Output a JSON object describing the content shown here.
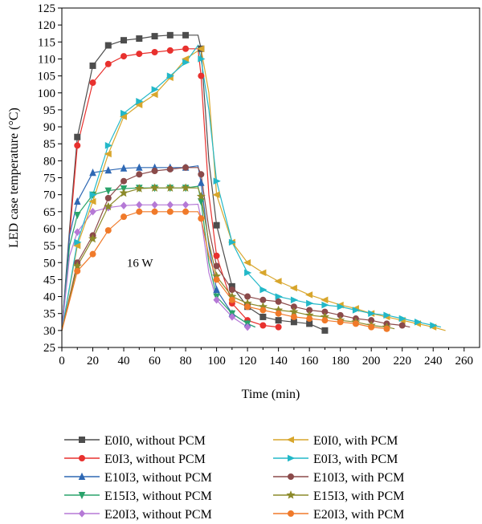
{
  "chart_data": {
    "type": "line",
    "title": "",
    "xlabel": "Time (min)",
    "ylabel": "LED case temperature (°C)",
    "xlim": [
      0,
      270
    ],
    "ylim": [
      25,
      125
    ],
    "xticks": [
      0,
      20,
      40,
      60,
      80,
      100,
      120,
      140,
      160,
      180,
      200,
      220,
      240,
      260
    ],
    "yticks": [
      25,
      30,
      35,
      40,
      45,
      50,
      55,
      60,
      65,
      70,
      75,
      80,
      85,
      90,
      95,
      100,
      105,
      110,
      115,
      120,
      125
    ],
    "grid": false,
    "legend_position": "bottom",
    "annotation": {
      "text": "16 W",
      "x": 42,
      "y": 50
    },
    "series": [
      {
        "name": "E0I0, without PCM",
        "color": "#4d4d4d",
        "marker": "square",
        "x": [
          0,
          5,
          10,
          20,
          30,
          40,
          50,
          60,
          70,
          80,
          88,
          90,
          95,
          100,
          110,
          120,
          130,
          140,
          150,
          160,
          170
        ],
        "y": [
          30,
          60,
          87,
          108,
          114,
          115.5,
          116,
          116.7,
          117,
          117,
          117,
          113,
          80,
          61,
          43,
          37,
          34,
          33,
          32.5,
          32,
          30
        ]
      },
      {
        "name": "E0I3, without PCM",
        "color": "#e8312e",
        "marker": "circle",
        "x": [
          0,
          5,
          10,
          20,
          30,
          40,
          50,
          60,
          70,
          80,
          88,
          90,
          95,
          100,
          110,
          120,
          130,
          140
        ],
        "y": [
          30,
          58,
          84.5,
          103,
          108.5,
          110.8,
          111.5,
          112,
          112.5,
          113,
          113,
          105,
          70,
          52,
          38,
          33,
          31.5,
          31
        ]
      },
      {
        "name": "E10I3, without PCM",
        "color": "#2e68b4",
        "marker": "triangle-up",
        "x": [
          0,
          5,
          10,
          20,
          30,
          40,
          50,
          60,
          70,
          80,
          88,
          90,
          95,
          100,
          110,
          120,
          125
        ],
        "y": [
          30,
          58,
          68,
          76.5,
          77.2,
          77.8,
          78,
          78,
          78,
          78,
          78.5,
          73.5,
          55,
          42,
          35,
          32,
          31
        ]
      },
      {
        "name": "E15I3, without PCM",
        "color": "#2aa36b",
        "marker": "triangle-down",
        "x": [
          0,
          5,
          10,
          20,
          30,
          40,
          50,
          60,
          70,
          80,
          88,
          90,
          95,
          100,
          110,
          120,
          125
        ],
        "y": [
          30,
          55,
          64,
          70,
          71.2,
          71.8,
          72,
          72,
          72,
          72,
          72.5,
          68,
          50,
          40,
          35,
          32,
          31
        ]
      },
      {
        "name": "E20I3, without PCM",
        "color": "#b579d6",
        "marker": "diamond",
        "x": [
          0,
          5,
          10,
          20,
          30,
          40,
          50,
          60,
          70,
          80,
          88,
          90,
          95,
          100,
          110,
          120
        ],
        "y": [
          30,
          52,
          59,
          65,
          66.2,
          66.8,
          67,
          67,
          67,
          67,
          67.2,
          63,
          47,
          39,
          34,
          31
        ]
      },
      {
        "name": "E0I0, with PCM",
        "color": "#d8a62c",
        "marker": "triangle-left",
        "x": [
          0,
          10,
          20,
          30,
          40,
          50,
          60,
          70,
          80,
          90,
          95,
          100,
          110,
          120,
          130,
          140,
          150,
          160,
          170,
          180,
          190,
          200,
          210,
          220,
          230,
          240,
          248
        ],
        "y": [
          30,
          55,
          68,
          82,
          93,
          96.5,
          99.5,
          104.5,
          110,
          113,
          100,
          70,
          56,
          50,
          47,
          44.5,
          42.5,
          40.5,
          39,
          37.5,
          36.5,
          35,
          34,
          33,
          32,
          31,
          30
        ]
      },
      {
        "name": "E0I3, with PCM",
        "color": "#23b8c8",
        "marker": "triangle-right",
        "x": [
          0,
          10,
          20,
          30,
          40,
          50,
          60,
          70,
          80,
          88,
          90,
          95,
          100,
          110,
          120,
          130,
          140,
          150,
          160,
          170,
          180,
          190,
          200,
          210,
          220,
          230,
          240,
          245
        ],
        "y": [
          30,
          56,
          70,
          84.5,
          94,
          97.5,
          101,
          105,
          109,
          114,
          110,
          95,
          74,
          56,
          47,
          42,
          40,
          39,
          38,
          37.5,
          37,
          36,
          35,
          34.5,
          33.5,
          32.5,
          31.5,
          31
        ]
      },
      {
        "name": "E10I3, with PCM",
        "color": "#8b4a4a",
        "marker": "circle",
        "x": [
          0,
          10,
          20,
          30,
          40,
          50,
          60,
          70,
          80,
          88,
          90,
          95,
          100,
          110,
          120,
          130,
          140,
          150,
          160,
          170,
          180,
          190,
          200,
          210,
          220,
          225
        ],
        "y": [
          30,
          50,
          58,
          69,
          74,
          76,
          77,
          77.5,
          78,
          78,
          76,
          60,
          49,
          42,
          40,
          39,
          38.5,
          37,
          36,
          35.5,
          34.5,
          33.5,
          33,
          32,
          31.5,
          31
        ]
      },
      {
        "name": "E15I3, with PCM",
        "color": "#8c8a2a",
        "marker": "star",
        "x": [
          0,
          10,
          20,
          30,
          40,
          50,
          60,
          70,
          80,
          88,
          90,
          95,
          100,
          110,
          120,
          130,
          140,
          150,
          160,
          170,
          180,
          190,
          200,
          210,
          215
        ],
        "y": [
          30,
          49,
          57,
          66.5,
          70.5,
          71.8,
          72,
          72,
          72,
          72,
          69.5,
          56,
          46,
          40,
          38,
          37,
          36,
          35.5,
          34.5,
          34,
          33,
          32.5,
          31.5,
          31,
          30.5
        ]
      },
      {
        "name": "E20I3, with PCM",
        "color": "#f07a2a",
        "marker": "circle",
        "x": [
          0,
          10,
          20,
          30,
          40,
          50,
          60,
          70,
          80,
          88,
          90,
          95,
          100,
          110,
          120,
          130,
          140,
          150,
          160,
          170,
          180,
          190,
          200,
          210
        ],
        "y": [
          30,
          47.5,
          52.5,
          59.5,
          63.5,
          65,
          65,
          65,
          65,
          65,
          63,
          52,
          45,
          39,
          37,
          36,
          35,
          34,
          33.5,
          33,
          32.5,
          32,
          31,
          30.5
        ]
      }
    ]
  }
}
